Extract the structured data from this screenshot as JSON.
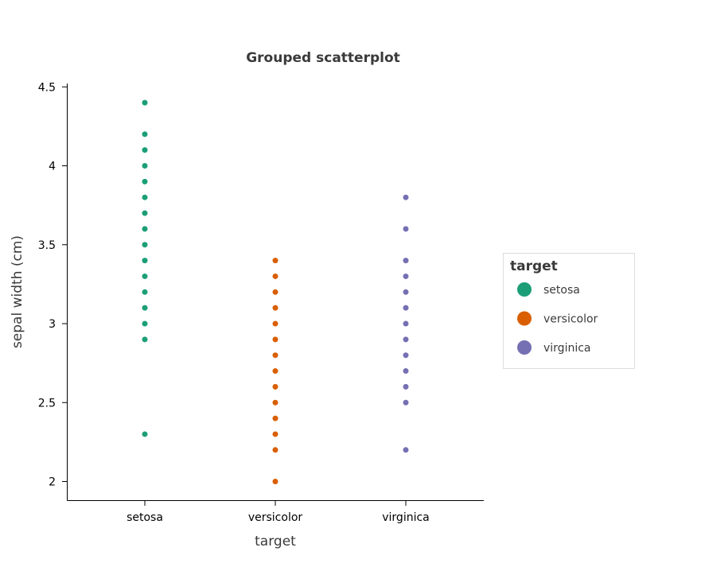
{
  "chart_data": {
    "type": "scatter",
    "title": "Grouped scatterplot",
    "xlabel": "target",
    "ylabel": "sepal width (cm)",
    "categories": [
      "setosa",
      "versicolor",
      "virginica"
    ],
    "ylim": [
      1.9,
      4.5
    ],
    "yticks": [
      2,
      2.5,
      3,
      3.5,
      4,
      4.5
    ],
    "ytick_labels": [
      "2",
      "2.5",
      "3",
      "3.5",
      "4",
      "4.5"
    ],
    "grid": false,
    "legend": {
      "title": "target",
      "placement": "right",
      "entries": [
        "setosa",
        "versicolor",
        "virginica"
      ]
    },
    "colors": {
      "setosa": "#1b9e77",
      "versicolor": "#d95f02",
      "virginica": "#7570b3"
    },
    "series": [
      {
        "name": "setosa",
        "category": "setosa",
        "values": [
          4.4,
          4.2,
          4.1,
          4.0,
          3.9,
          3.8,
          3.7,
          3.6,
          3.5,
          3.4,
          3.3,
          3.2,
          3.1,
          3.0,
          2.9,
          2.3
        ]
      },
      {
        "name": "versicolor",
        "category": "versicolor",
        "values": [
          3.4,
          3.3,
          3.2,
          3.1,
          3.0,
          2.9,
          2.8,
          2.7,
          2.6,
          2.5,
          2.4,
          2.3,
          2.2,
          2.0
        ]
      },
      {
        "name": "virginica",
        "category": "virginica",
        "values": [
          3.8,
          3.6,
          3.4,
          3.3,
          3.2,
          3.1,
          3.0,
          2.9,
          2.8,
          2.7,
          2.6,
          2.5,
          2.2
        ]
      }
    ]
  }
}
